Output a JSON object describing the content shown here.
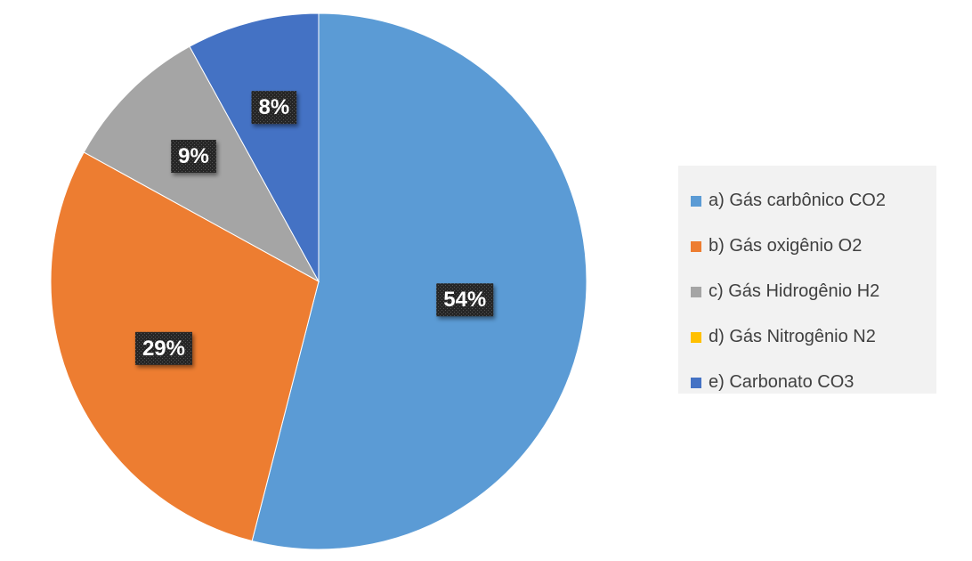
{
  "chart_data": {
    "type": "pie",
    "title": "",
    "slices": [
      {
        "label": "a) Gás carbônico CO2",
        "value": 54,
        "display": "54%",
        "color": "#5b9bd5"
      },
      {
        "label": "b) Gás oxigênio O2",
        "value": 29,
        "display": "29%",
        "color": "#ed7d31"
      },
      {
        "label": "c) Gás Hidrogênio H2",
        "value": 9,
        "display": "9%",
        "color": "#a5a5a5"
      },
      {
        "label": "d) Gás Nitrogênio N2",
        "value": 0,
        "display": "",
        "color": "#ffc000"
      },
      {
        "label": "e) Carbonato CO3",
        "value": 8,
        "display": "8%",
        "color": "#4472c4"
      }
    ],
    "legend_position": "right"
  }
}
